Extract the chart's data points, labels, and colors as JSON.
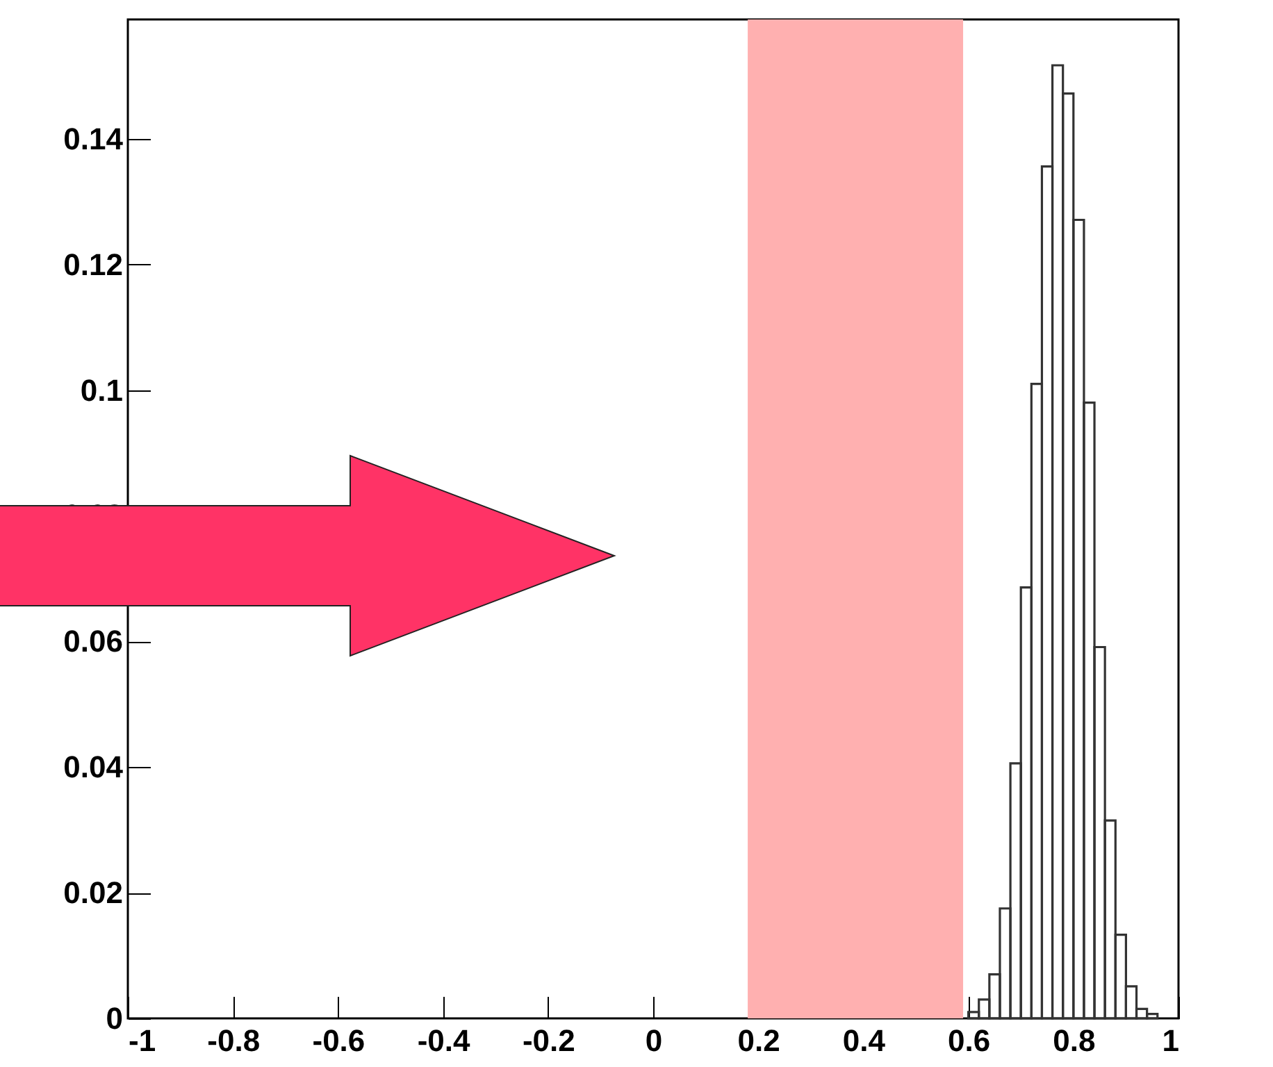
{
  "chart_data": {
    "type": "histogram",
    "bins": [
      0.6,
      0.62,
      0.64,
      0.66,
      0.68,
      0.7,
      0.72,
      0.74,
      0.76,
      0.78,
      0.8,
      0.82,
      0.84,
      0.86,
      0.88,
      0.9,
      0.92,
      0.94,
      0.96
    ],
    "values": [
      0.001,
      0.003,
      0.007,
      0.0175,
      0.0406,
      0.0686,
      0.101,
      0.1356,
      0.1517,
      0.1472,
      0.1271,
      0.098,
      0.0591,
      0.0315,
      0.0133,
      0.0051,
      0.0015,
      0.0007
    ],
    "color": "#333333",
    "xlim": [
      -1,
      1
    ],
    "xticks": [
      -1,
      -0.8,
      -0.6,
      -0.4,
      -0.2,
      0,
      0.2,
      0.4,
      0.6,
      0.8,
      1
    ],
    "ylim": [
      0,
      0.159
    ],
    "yticks": [
      0,
      0.02,
      0.04,
      0.06,
      0.08,
      0.1,
      0.12,
      0.14
    ],
    "bands": [
      {
        "axis": "x",
        "from": 0.18,
        "to": 0.59,
        "color": "#ffb0b0"
      }
    ],
    "grid": false
  }
}
